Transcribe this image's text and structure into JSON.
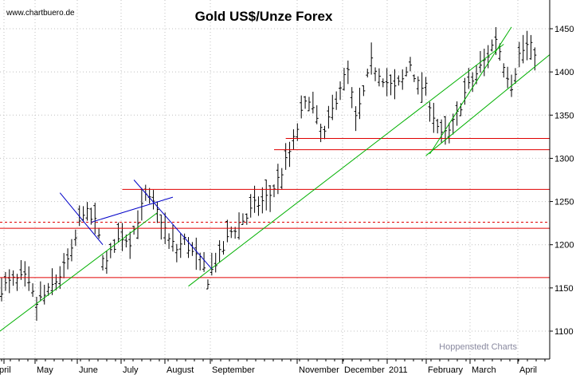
{
  "source_label": "www.chartbuero.de",
  "credit_label": "Hoppenstedt Charts",
  "colors": {
    "bars": "#000000",
    "resistance_support": "#e00000",
    "trend_up": "#00b000",
    "trend_down": "#0000c8",
    "grid": "#c0c0c0"
  },
  "chart_data": {
    "type": "ohlc",
    "title": "Gold US$/Unze Forex",
    "xlabel": "",
    "ylabel": "",
    "ylim": [
      1100,
      1450
    ],
    "y_axis_position": "right",
    "y_ticks": [
      1100,
      1150,
      1200,
      1250,
      1300,
      1350,
      1400,
      1450
    ],
    "x_tick_labels": [
      "pril",
      "May",
      "June",
      "July",
      "August",
      "September",
      "November",
      "December",
      "2011",
      "February",
      "March",
      "April"
    ],
    "grid": true,
    "close_path": [
      [
        0,
        1150
      ],
      [
        3,
        1158
      ],
      [
        6,
        1160
      ],
      [
        9,
        1132
      ],
      [
        12,
        1145
      ],
      [
        15,
        1165
      ],
      [
        18,
        1190
      ],
      [
        21,
        1240
      ],
      [
        24,
        1225
      ],
      [
        26,
        1190
      ],
      [
        27,
        1178
      ],
      [
        29,
        1200
      ],
      [
        31,
        1210
      ],
      [
        33,
        1205
      ],
      [
        35,
        1230
      ],
      [
        37,
        1255
      ],
      [
        39,
        1245
      ],
      [
        41,
        1230
      ],
      [
        43,
        1205
      ],
      [
        45,
        1195
      ],
      [
        47,
        1205
      ],
      [
        49,
        1190
      ],
      [
        51,
        1180
      ],
      [
        53,
        1160
      ],
      [
        55,
        1180
      ],
      [
        57,
        1195
      ],
      [
        59,
        1215
      ],
      [
        61,
        1225
      ],
      [
        63,
        1232
      ],
      [
        65,
        1245
      ],
      [
        67,
        1250
      ],
      [
        69,
        1258
      ],
      [
        71,
        1275
      ],
      [
        73,
        1295
      ],
      [
        75,
        1320
      ],
      [
        77,
        1350
      ],
      [
        79,
        1372
      ],
      [
        81,
        1340
      ],
      [
        83,
        1328
      ],
      [
        85,
        1355
      ],
      [
        87,
        1385
      ],
      [
        89,
        1400
      ],
      [
        91,
        1345
      ],
      [
        93,
        1375
      ],
      [
        95,
        1410
      ],
      [
        97,
        1400
      ],
      [
        99,
        1388
      ],
      [
        101,
        1380
      ],
      [
        103,
        1390
      ],
      [
        105,
        1410
      ],
      [
        107,
        1385
      ],
      [
        109,
        1380
      ],
      [
        111,
        1350
      ],
      [
        113,
        1325
      ],
      [
        115,
        1330
      ],
      [
        117,
        1350
      ],
      [
        119,
        1375
      ],
      [
        121,
        1390
      ],
      [
        123,
        1405
      ],
      [
        125,
        1420
      ],
      [
        127,
        1440
      ],
      [
        129,
        1410
      ],
      [
        131,
        1385
      ],
      [
        133,
        1420
      ],
      [
        135,
        1430
      ],
      [
        137,
        1425
      ]
    ],
    "lines": [
      {
        "kind": "horizontal",
        "color": "red",
        "style": "solid",
        "y": 1323,
        "x_from": 73,
        "x_to": 140
      },
      {
        "kind": "horizontal",
        "color": "red",
        "style": "solid",
        "y": 1310,
        "x_from": 70,
        "x_to": 140
      },
      {
        "kind": "horizontal",
        "color": "red",
        "style": "solid",
        "y": 1264,
        "x_from": 31,
        "x_to": 140
      },
      {
        "kind": "horizontal",
        "color": "red",
        "style": "dashed",
        "y": 1226,
        "x_from": 0,
        "x_to": 140
      },
      {
        "kind": "horizontal",
        "color": "red",
        "style": "solid",
        "y": 1219,
        "x_from": 0,
        "x_to": 140
      },
      {
        "kind": "horizontal",
        "color": "red",
        "style": "solid",
        "y": 1162,
        "x_from": 0,
        "x_to": 140
      },
      {
        "kind": "trend",
        "color": "green",
        "from": [
          0,
          1100
        ],
        "to": [
          40,
          1237
        ]
      },
      {
        "kind": "trend",
        "color": "green",
        "from": [
          48,
          1152
        ],
        "to": [
          129,
          1432
        ]
      },
      {
        "kind": "trend",
        "color": "green",
        "from": [
          110,
          1305
        ],
        "to": [
          131,
          1452
        ]
      },
      {
        "kind": "trend",
        "color": "green",
        "from": [
          109,
          1303
        ],
        "to": [
          140,
          1420
        ]
      },
      {
        "kind": "trend",
        "color": "blue",
        "from": [
          15,
          1260
        ],
        "to": [
          26,
          1200
        ]
      },
      {
        "kind": "trend",
        "color": "blue",
        "from": [
          34,
          1275
        ],
        "to": [
          54,
          1172
        ]
      },
      {
        "kind": "trend",
        "color": "blue",
        "from": [
          23,
          1226
        ],
        "to": [
          44,
          1255
        ]
      }
    ]
  }
}
